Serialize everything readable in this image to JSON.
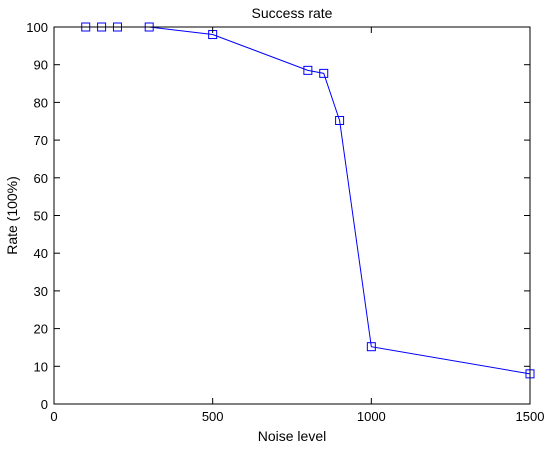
{
  "chart_data": {
    "type": "line",
    "title": "Success rate",
    "xlabel": "Noise level",
    "ylabel": "Rate (100%)",
    "xlim": [
      0,
      1500
    ],
    "ylim": [
      0,
      100
    ],
    "xticks": [
      0,
      500,
      1000,
      1500
    ],
    "yticks": [
      0,
      10,
      20,
      30,
      40,
      50,
      60,
      70,
      80,
      90,
      100
    ],
    "grid": false,
    "legend": "none",
    "series": [
      {
        "x": [
          100,
          150,
          200,
          300,
          500,
          800,
          850,
          900,
          1000,
          1500
        ],
        "y": [
          100,
          100,
          100,
          100,
          98,
          88.5,
          87.7,
          75.2,
          15.2,
          8
        ],
        "color": "#0000ff",
        "marker": "square"
      }
    ]
  }
}
